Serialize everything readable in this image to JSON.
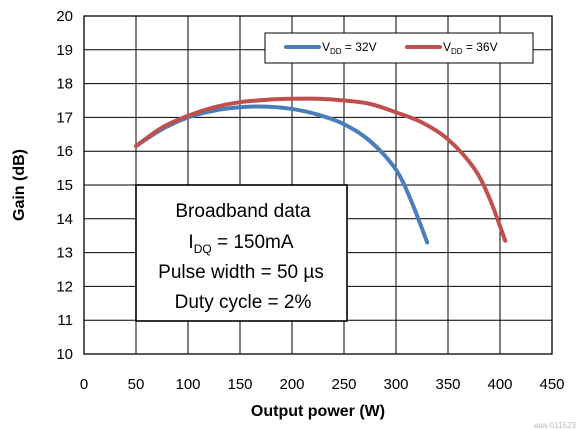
{
  "chart_data": {
    "type": "line",
    "title": "",
    "xlabel": "Output power (W)",
    "ylabel": "Gain (dB)",
    "xlim": [
      0,
      450
    ],
    "ylim": [
      10,
      20
    ],
    "x_ticks": [
      "0",
      "50",
      "100",
      "150",
      "200",
      "250",
      "300",
      "350",
      "400",
      "450"
    ],
    "y_ticks": [
      "10",
      "11",
      "12",
      "13",
      "14",
      "15",
      "16",
      "17",
      "18",
      "19",
      "20"
    ],
    "grid": true,
    "legend_position": "top-right",
    "series": [
      {
        "name_main": "V",
        "name_sub": "DD",
        "name_tail": " = 32V",
        "color": "#4a7ebb",
        "points": [
          [
            50,
            16.15
          ],
          [
            75,
            16.65
          ],
          [
            100,
            17.0
          ],
          [
            125,
            17.2
          ],
          [
            150,
            17.3
          ],
          [
            175,
            17.32
          ],
          [
            200,
            17.25
          ],
          [
            225,
            17.08
          ],
          [
            250,
            16.8
          ],
          [
            275,
            16.3
          ],
          [
            300,
            15.45
          ],
          [
            315,
            14.5
          ],
          [
            330,
            13.3
          ]
        ]
      },
      {
        "name_main": "V",
        "name_sub": "DD",
        "name_tail": " = 36V",
        "color": "#c0504d",
        "points": [
          [
            50,
            16.15
          ],
          [
            75,
            16.7
          ],
          [
            100,
            17.05
          ],
          [
            125,
            17.3
          ],
          [
            150,
            17.45
          ],
          [
            175,
            17.52
          ],
          [
            200,
            17.55
          ],
          [
            225,
            17.55
          ],
          [
            250,
            17.5
          ],
          [
            275,
            17.4
          ],
          [
            300,
            17.15
          ],
          [
            325,
            16.85
          ],
          [
            350,
            16.35
          ],
          [
            375,
            15.5
          ],
          [
            390,
            14.6
          ],
          [
            405,
            13.35
          ]
        ]
      }
    ],
    "annotation": {
      "line1": "Broadband data",
      "line2_main": "I",
      "line2_sub": "DQ",
      "line2_tail": " = 150mA",
      "line3": "Pulse width = 50 µs",
      "line4": "Duty cycle = 2%"
    },
    "figure_id": "aaa-011523"
  }
}
